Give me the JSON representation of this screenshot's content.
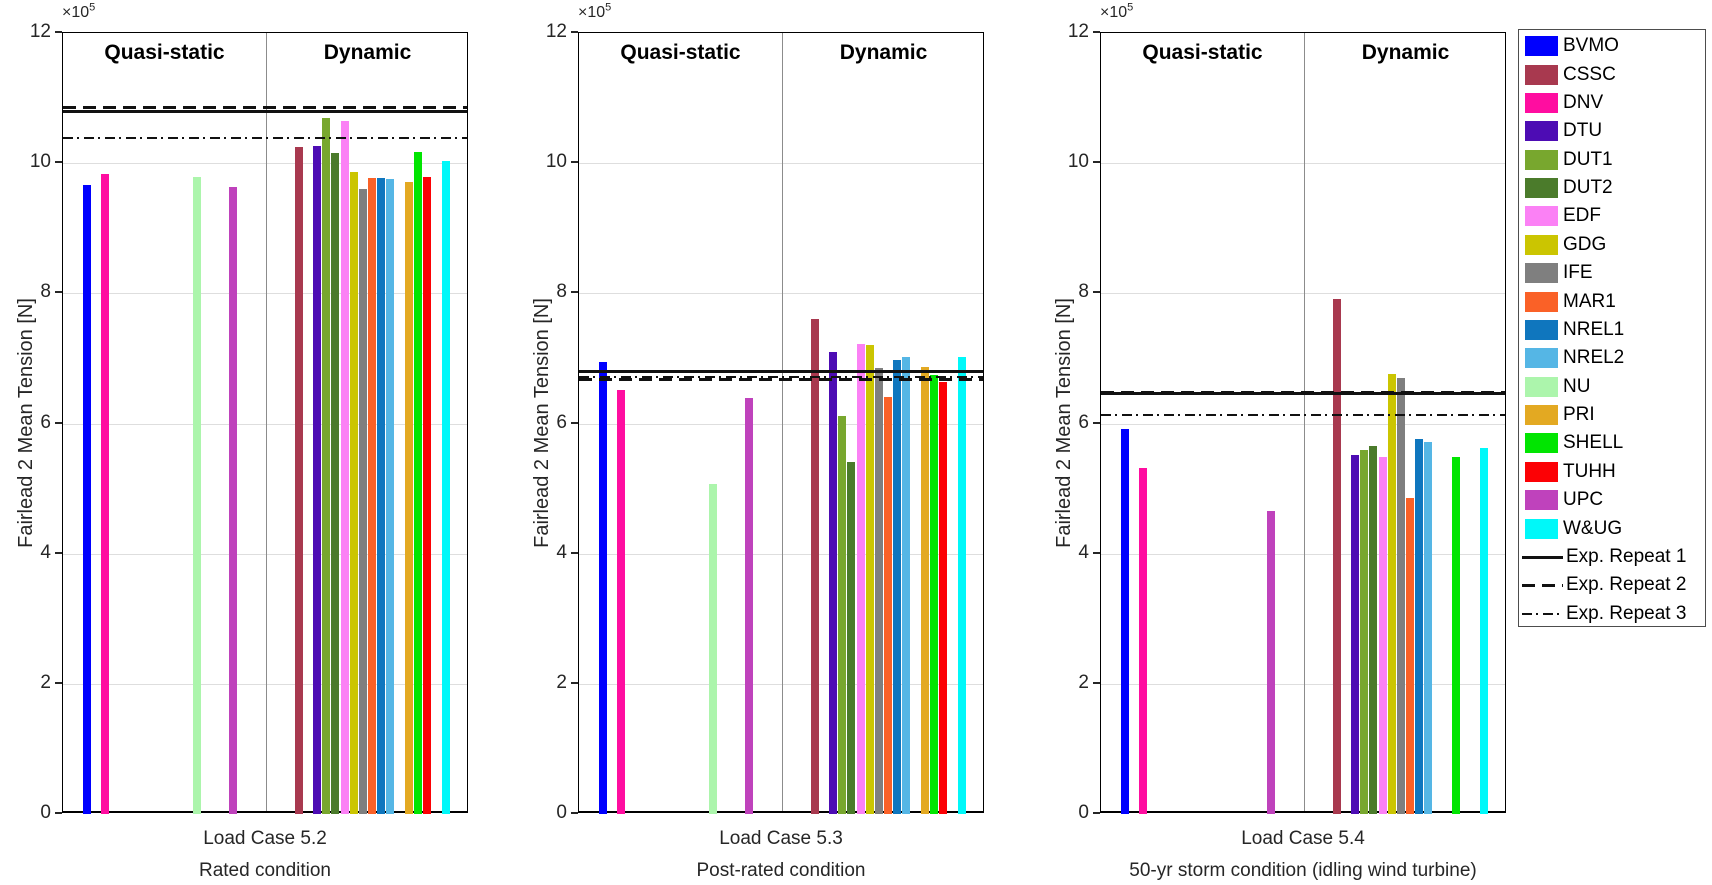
{
  "figure": {
    "background": "#FFFFFF",
    "text_color": "#262626",
    "exponent_prefix": "×10",
    "exponent_power": "5"
  },
  "chart_data": {
    "type": "bar",
    "title": "",
    "ylabel": "Fairlead 2 Mean Tension [N]",
    "units_note": "bar values in N × 10^5 as read from axis",
    "ylim": [
      0,
      12
    ],
    "yticks": [
      0,
      2,
      4,
      6,
      8,
      10,
      12
    ],
    "grid": "horizontal light gray lines at ticks 2,4,6,8,10",
    "legend_position": "outside-right",
    "sections": [
      {
        "key": "quasi_static",
        "label": "Quasi-static"
      },
      {
        "key": "dynamic",
        "label": "Dynamic"
      }
    ],
    "participants": [
      {
        "name": "BVMO",
        "color": "#0000FE"
      },
      {
        "name": "CSSC",
        "color": "#A8394F"
      },
      {
        "name": "DNV",
        "color": "#FF0DA0"
      },
      {
        "name": "DTU",
        "color": "#4D0CB4"
      },
      {
        "name": "DUT1",
        "color": "#78A72E"
      },
      {
        "name": "DUT2",
        "color": "#4B7B2B"
      },
      {
        "name": "EDF",
        "color": "#FB81F5"
      },
      {
        "name": "GDG",
        "color": "#CBC501"
      },
      {
        "name": "IFE",
        "color": "#7F7F7F"
      },
      {
        "name": "MAR1",
        "color": "#FA6127"
      },
      {
        "name": "NREL1",
        "color": "#0F76BE"
      },
      {
        "name": "NREL2",
        "color": "#55B6E5"
      },
      {
        "name": "NU",
        "color": "#ACF5AC"
      },
      {
        "name": "PRI",
        "color": "#E3A922"
      },
      {
        "name": "SHELL",
        "color": "#01E501"
      },
      {
        "name": "TUHH",
        "color": "#FC0105"
      },
      {
        "name": "UPC",
        "color": "#BF42BC"
      },
      {
        "name": "W&UG",
        "color": "#00F8F9"
      }
    ],
    "exp_lines": [
      {
        "key": "repeat1",
        "label": "Exp. Repeat 1",
        "style": "solid"
      },
      {
        "key": "repeat2",
        "label": "Exp. Repeat 2",
        "style": "dashed"
      },
      {
        "key": "repeat3",
        "label": "Exp. Repeat 3",
        "style": "dashdot"
      }
    ],
    "panels": [
      {
        "xlabel_line1": "Load Case 5.2",
        "xlabel_line2": "Rated condition",
        "quasi_static": {
          "BVMO": 9.66,
          "DNV": 9.84,
          "NU": 9.79,
          "UPC": 9.63
        },
        "dynamic": {
          "CSSC": 10.25,
          "DTU": 10.27,
          "DUT1": 10.7,
          "DUT2": 10.15,
          "EDF": 10.65,
          "GDG": 9.86,
          "IFE": 9.6,
          "MAR1": 9.77,
          "NREL1": 9.77,
          "NREL2": 9.76,
          "PRI": 9.71,
          "SHELL": 10.18,
          "TUHH": 9.79,
          "W&UG": 10.03
        },
        "exp_values": {
          "repeat1": 10.79,
          "repeat2": 10.86,
          "repeat3": 10.39
        }
      },
      {
        "xlabel_line1": "Load Case 5.3",
        "xlabel_line2": "Post-rated condition",
        "quasi_static": {
          "BVMO": 6.94,
          "DNV": 6.51,
          "NU": 5.07,
          "UPC": 6.39
        },
        "dynamic": {
          "CSSC": 7.61,
          "DTU": 7.1,
          "DUT1": 6.11,
          "DUT2": 5.41,
          "EDF": 7.22,
          "GDG": 7.2,
          "IFE": 6.85,
          "MAR1": 6.41,
          "NREL1": 6.98,
          "NREL2": 7.03,
          "PRI": 6.87,
          "SHELL": 6.74,
          "TUHH": 6.64,
          "W&UG": 7.02
        },
        "exp_values": {
          "repeat1": 6.8,
          "repeat2": 6.67,
          "repeat3": 6.71
        }
      },
      {
        "xlabel_line1": "Load Case 5.4",
        "xlabel_line2": "50-yr storm condition (idling wind turbine)",
        "quasi_static": {
          "BVMO": 5.91,
          "DNV": 5.32,
          "UPC": 4.66
        },
        "dynamic": {
          "CSSC": 7.91,
          "DTU": 5.52,
          "DUT1": 5.59,
          "DUT2": 5.66,
          "EDF": 5.48,
          "GDG": 6.76,
          "IFE": 6.7,
          "MAR1": 4.86,
          "NREL1": 5.76,
          "NREL2": 5.72,
          "SHELL": 5.48,
          "W&UG": 5.63
        },
        "exp_values": {
          "repeat1": 6.46,
          "repeat2": 6.48,
          "repeat3": 6.13
        }
      }
    ]
  }
}
